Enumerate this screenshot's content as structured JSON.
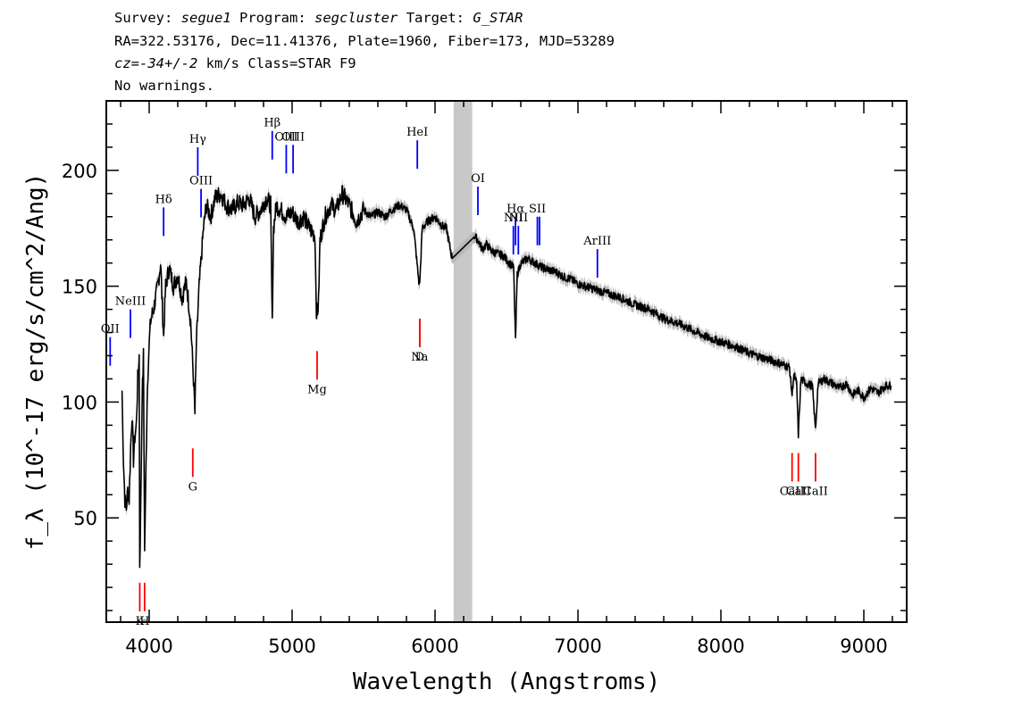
{
  "header": {
    "survey_label": "Survey:",
    "survey_value": "segue1",
    "program_label": "Program:",
    "program_value": "segcluster",
    "target_label": "Target:",
    "target_value": "G_STAR",
    "line2": "RA=322.53176, Dec=11.41376, Plate=1960, Fiber=173, MJD=53289",
    "cz_label": "cz=",
    "cz_value": "-34+/-2",
    "cz_rest": " km/s Class=STAR F9",
    "line4": "No warnings."
  },
  "colors": {
    "spectrum": "#000000",
    "error_band": "#b8b8b8",
    "masked_region": "#c8c8c8",
    "emission_line": "#0000ff",
    "absorption_line": "#ff0000"
  },
  "chart_data": {
    "type": "line",
    "title": "",
    "xlabel": "Wavelength (Angstroms)",
    "ylabel": "f_λ (10^-17 erg/s/cm^2/Ang)",
    "xlim": [
      3700,
      9300
    ],
    "ylim": [
      5,
      230
    ],
    "x_ticks": [
      4000,
      5000,
      6000,
      7000,
      8000,
      9000
    ],
    "y_ticks": [
      50,
      100,
      150,
      200
    ],
    "grid": false,
    "masked_band": [
      6130,
      6260
    ],
    "series": [
      {
        "values": [
          [
            3810,
            105
          ],
          [
            3820,
            75
          ],
          [
            3830,
            58
          ],
          [
            3840,
            54
          ],
          [
            3850,
            62
          ],
          [
            3860,
            58
          ],
          [
            3870,
            80
          ],
          [
            3880,
            95
          ],
          [
            3890,
            75
          ],
          [
            3900,
            85
          ],
          [
            3910,
            90
          ],
          [
            3920,
            110
          ],
          [
            3930,
            120
          ],
          [
            3934,
            30
          ],
          [
            3940,
            50
          ],
          [
            3950,
            100
          ],
          [
            3960,
            120
          ],
          [
            3968,
            35
          ],
          [
            3975,
            60
          ],
          [
            3985,
            100
          ],
          [
            3995,
            120
          ],
          [
            4010,
            135
          ],
          [
            4030,
            140
          ],
          [
            4060,
            150
          ],
          [
            4080,
            160
          ],
          [
            4101,
            128
          ],
          [
            4115,
            150
          ],
          [
            4140,
            158
          ],
          [
            4170,
            150
          ],
          [
            4200,
            155
          ],
          [
            4230,
            145
          ],
          [
            4260,
            152
          ],
          [
            4290,
            135
          ],
          [
            4310,
            110
          ],
          [
            4320,
            95
          ],
          [
            4330,
            125
          ],
          [
            4350,
            150
          ],
          [
            4380,
            175
          ],
          [
            4400,
            185
          ],
          [
            4430,
            180
          ],
          [
            4460,
            188
          ],
          [
            4500,
            190
          ],
          [
            4540,
            185
          ],
          [
            4580,
            183
          ],
          [
            4620,
            186
          ],
          [
            4660,
            185
          ],
          [
            4700,
            188
          ],
          [
            4740,
            180
          ],
          [
            4780,
            183
          ],
          [
            4820,
            188
          ],
          [
            4850,
            185
          ],
          [
            4861,
            133
          ],
          [
            4870,
            175
          ],
          [
            4890,
            185
          ],
          [
            4920,
            183
          ],
          [
            4960,
            180
          ],
          [
            5000,
            182
          ],
          [
            5040,
            178
          ],
          [
            5080,
            180
          ],
          [
            5120,
            175
          ],
          [
            5160,
            172
          ],
          [
            5170,
            140
          ],
          [
            5175,
            138
          ],
          [
            5185,
            143
          ],
          [
            5195,
            170
          ],
          [
            5230,
            180
          ],
          [
            5270,
            185
          ],
          [
            5310,
            183
          ],
          [
            5350,
            190
          ],
          [
            5400,
            185
          ],
          [
            5450,
            178
          ],
          [
            5500,
            183
          ],
          [
            5550,
            180
          ],
          [
            5600,
            182
          ],
          [
            5650,
            180
          ],
          [
            5700,
            183
          ],
          [
            5750,
            185
          ],
          [
            5800,
            183
          ],
          [
            5850,
            175
          ],
          [
            5890,
            150
          ],
          [
            5896,
            155
          ],
          [
            5910,
            175
          ],
          [
            5950,
            178
          ],
          [
            6000,
            180
          ],
          [
            6050,
            176
          ],
          [
            6080,
            175
          ],
          [
            6100,
            168
          ],
          [
            6120,
            162
          ],
          [
            6270,
            172
          ],
          [
            6300,
            170
          ],
          [
            6330,
            166
          ],
          [
            6360,
            168
          ],
          [
            6400,
            165
          ],
          [
            6440,
            164
          ],
          [
            6480,
            163
          ],
          [
            6520,
            160
          ],
          [
            6550,
            158
          ],
          [
            6563,
            126
          ],
          [
            6575,
            155
          ],
          [
            6600,
            160
          ],
          [
            6650,
            162
          ],
          [
            6700,
            160
          ],
          [
            6750,
            158
          ],
          [
            6800,
            157
          ],
          [
            6850,
            156
          ],
          [
            6900,
            154
          ],
          [
            6950,
            153
          ],
          [
            7000,
            151
          ],
          [
            7100,
            149
          ],
          [
            7200,
            147
          ],
          [
            7300,
            145
          ],
          [
            7400,
            142
          ],
          [
            7500,
            140
          ],
          [
            7600,
            136
          ],
          [
            7700,
            134
          ],
          [
            7800,
            131
          ],
          [
            7900,
            128
          ],
          [
            8000,
            126
          ],
          [
            8100,
            124
          ],
          [
            8200,
            121
          ],
          [
            8300,
            119
          ],
          [
            8400,
            117
          ],
          [
            8480,
            115
          ],
          [
            8498,
            103
          ],
          [
            8510,
            112
          ],
          [
            8530,
            108
          ],
          [
            8542,
            86
          ],
          [
            8560,
            110
          ],
          [
            8600,
            108
          ],
          [
            8640,
            107
          ],
          [
            8662,
            88
          ],
          [
            8680,
            108
          ],
          [
            8720,
            110
          ],
          [
            8780,
            108
          ],
          [
            8830,
            106
          ],
          [
            8880,
            108
          ],
          [
            8920,
            103
          ],
          [
            8960,
            105
          ],
          [
            9000,
            102
          ],
          [
            9050,
            106
          ],
          [
            9100,
            104
          ],
          [
            9150,
            107
          ],
          [
            9190,
            107
          ]
        ]
      }
    ],
    "line_markers": [
      {
        "label": "OII",
        "x": 3727,
        "y": 128,
        "kind": "emission"
      },
      {
        "label": "NeIII",
        "x": 3869,
        "y": 140,
        "kind": "emission"
      },
      {
        "label": "Hδ",
        "x": 4101,
        "y": 184,
        "kind": "emission"
      },
      {
        "label": "Hγ",
        "x": 4340,
        "y": 210,
        "kind": "emission"
      },
      {
        "label": "OIII",
        "x": 4363,
        "y": 192,
        "kind": "emission"
      },
      {
        "label": "Hβ",
        "x": 4861,
        "y": 217,
        "kind": "emission"
      },
      {
        "label": "OIII",
        "x": 4959,
        "y": 211,
        "kind": "emission"
      },
      {
        "label": "OIII",
        "x": 5007,
        "y": 211,
        "kind": "emission"
      },
      {
        "label": "HeI",
        "x": 5876,
        "y": 213,
        "kind": "emission"
      },
      {
        "label": "OI",
        "x": 6300,
        "y": 193,
        "kind": "emission"
      },
      {
        "label": "NII",
        "x": 6548,
        "y": 176,
        "kind": "emission"
      },
      {
        "label": "Hα",
        "x": 6563,
        "y": 180,
        "kind": "emission"
      },
      {
        "label": "NII",
        "x": 6583,
        "y": 176,
        "kind": "emission"
      },
      {
        "label": "SII",
        "x": 6716,
        "y": 180,
        "kind": "emission"
      },
      {
        "label": "SII",
        "x": 6731,
        "y": 180,
        "kind": "emission"
      },
      {
        "label": "ArIII",
        "x": 7136,
        "y": 166,
        "kind": "emission"
      },
      {
        "label": "K",
        "x": 3934,
        "y": 22,
        "kind": "absorption"
      },
      {
        "label": "H",
        "x": 3968,
        "y": 22,
        "kind": "absorption"
      },
      {
        "label": "G",
        "x": 4305,
        "y": 80,
        "kind": "absorption"
      },
      {
        "label": "Mg",
        "x": 5175,
        "y": 122,
        "kind": "absorption"
      },
      {
        "label": "Na",
        "x": 5893,
        "y": 136,
        "kind": "absorption"
      },
      {
        "label": "D",
        "x": 5893,
        "y": 136,
        "kind": "absorption"
      },
      {
        "label": "CaII",
        "x": 8498,
        "y": 78,
        "kind": "absorption"
      },
      {
        "label": "CaII",
        "x": 8542,
        "y": 78,
        "kind": "absorption"
      },
      {
        "label": "CaII",
        "x": 8662,
        "y": 78,
        "kind": "absorption"
      }
    ]
  }
}
